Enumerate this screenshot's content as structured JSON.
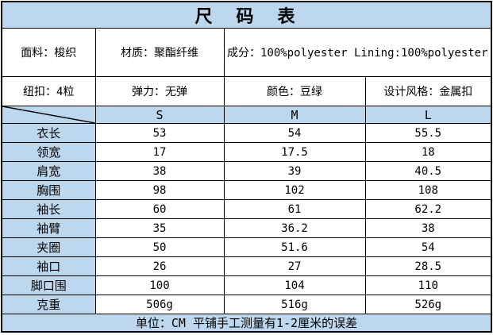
{
  "title": "尺　码　表",
  "spec_rows": {
    "row1": [
      "面料：梭织",
      "材质：聚酯纤维",
      "成分：100%polyester Lining:100%polyester"
    ],
    "row2": [
      "纽扣：4粒",
      "弹力：无弹",
      "颜色：豆绿",
      "设计风格：金属扣"
    ]
  },
  "size_header": {
    "columns": [
      "S",
      "M",
      "L"
    ]
  },
  "measurements": [
    {
      "label": "衣长",
      "values": [
        "53",
        "54",
        "55.5"
      ]
    },
    {
      "label": "领宽",
      "values": [
        "17",
        "17.5",
        "18"
      ]
    },
    {
      "label": "肩宽",
      "values": [
        "38",
        "39",
        "40.5"
      ]
    },
    {
      "label": "胸围",
      "values": [
        "98",
        "102",
        "108"
      ]
    },
    {
      "label": "袖长",
      "values": [
        "60",
        "61",
        "62.2"
      ]
    },
    {
      "label": "袖臂",
      "values": [
        "35",
        "36.2",
        "38"
      ]
    },
    {
      "label": "夹圈",
      "values": [
        "50",
        "51.6",
        "54"
      ]
    },
    {
      "label": "袖口",
      "values": [
        "26",
        "27",
        "28.5"
      ]
    },
    {
      "label": "脚口围",
      "values": [
        "100",
        "104",
        "110"
      ]
    },
    {
      "label": "克重",
      "values": [
        "506g",
        "516g",
        "526g"
      ]
    }
  ],
  "footer_note": "单位：CM 平铺手工测量有1-2厘米的误差",
  "colors": {
    "header_bg": "#BDD7EE",
    "value_bg": "#FFFFFF",
    "border": "#000000",
    "text": "#000000"
  }
}
